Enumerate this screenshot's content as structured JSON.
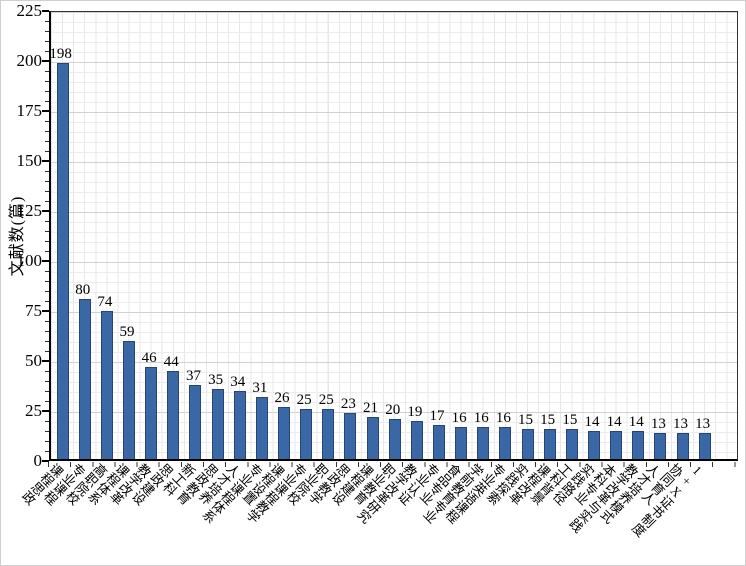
{
  "chart_data": {
    "type": "bar",
    "title": "",
    "xlabel": "",
    "ylabel": "文献数(篇)",
    "ylim": [
      0,
      225
    ],
    "ytick_interval": 25,
    "yticks": [
      0,
      25,
      50,
      75,
      100,
      125,
      150,
      175,
      200,
      225
    ],
    "grid": "on",
    "legend": "none",
    "bar_color": "#3A67A5",
    "bar_border_color": "#26466F",
    "categories": [
      "课程思政",
      "专业课程",
      "高职院校",
      "课程体系",
      "教学改革",
      "思政建设",
      "新工科",
      "思政教育",
      "人才培养",
      "专业课程体系",
      "课程设置",
      "专业课程教学",
      "职业院校",
      "思政教学",
      "课程建设",
      "职业教育",
      "教学改革研究",
      "专业认证",
      "食品专业",
      "学前教育专业",
      "专业英语课程",
      "实践探索",
      "课程改革",
      "工科背景",
      "实践路径",
      "本科专业",
      "教学改革与实践",
      "人才培养模式",
      "协同育人",
      "1+X证书制度"
    ],
    "values": [
      198,
      80,
      74,
      59,
      46,
      44,
      37,
      35,
      34,
      31,
      26,
      25,
      25,
      23,
      21,
      20,
      19,
      17,
      16,
      16,
      16,
      15,
      15,
      15,
      14,
      14,
      14,
      13,
      13,
      13
    ]
  }
}
